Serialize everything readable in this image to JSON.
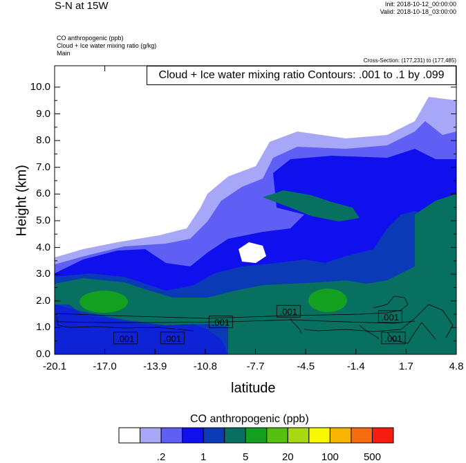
{
  "header": {
    "title": "S-N at 15W",
    "init": "Init: 2018-10-12_00:00:00",
    "valid": "Valid: 2018-10-18_03:00:00",
    "field1": "CO anthropogenic   (ppb)",
    "field2": "Cloud + Ice water mixing ratio   (g/kg)",
    "field3": "Main",
    "cross_section": "Cross-Section: (177,231) to (177,485)",
    "contour_info": "Cloud + Ice water mixing ratio Contours: .001 to .1 by .099"
  },
  "chart_data": {
    "type": "heatmap",
    "xlabel": "latitude",
    "ylabel": "Height (km)",
    "xlim": [
      -20.1,
      4.8
    ],
    "ylim": [
      0.0,
      10.8
    ],
    "x_ticks": [
      "-20.1",
      "-17.0",
      "-13.9",
      "-10.8",
      "-7.7",
      "-4.5",
      "-1.4",
      "1.7",
      "4.8"
    ],
    "y_ticks": [
      "0.0",
      "1.0",
      "2.0",
      "3.0",
      "4.0",
      "5.0",
      "6.0",
      "7.0",
      "8.0",
      "9.0",
      "10.0"
    ],
    "contour_labels": [
      {
        "text": ".001",
        "x": -15.7,
        "y": 0.6
      },
      {
        "text": ".001",
        "x": -12.8,
        "y": 0.6
      },
      {
        "text": ".001",
        "x": -9.8,
        "y": 1.2
      },
      {
        "text": ".001",
        "x": -5.6,
        "y": 1.6
      },
      {
        "text": ".001",
        "x": 0.7,
        "y": 1.4
      },
      {
        "text": ".001",
        "x": 0.9,
        "y": 0.6
      }
    ],
    "colorbar": {
      "title": "CO anthropogenic  (ppb)",
      "colors": [
        "#ffffff",
        "#a7a7f8",
        "#5f5ff6",
        "#1010ee",
        "#0a3ab6",
        "#087060",
        "#13a020",
        "#55c010",
        "#a8d810",
        "#f8f800",
        "#f8b400",
        "#f86c10",
        "#f81c10"
      ],
      "labels": [
        ".2",
        "1",
        "5",
        "20",
        "100",
        "500"
      ]
    },
    "regions": [
      {
        "level": 1,
        "color": "#a7a7f8"
      },
      {
        "level": 2,
        "color": "#5f5ff6"
      },
      {
        "level": 3,
        "color": "#1010ee"
      },
      {
        "level": 4,
        "color": "#0a3ab6"
      },
      {
        "level": 5,
        "color": "#087060"
      },
      {
        "level": 6,
        "color": "#13a020"
      }
    ]
  }
}
